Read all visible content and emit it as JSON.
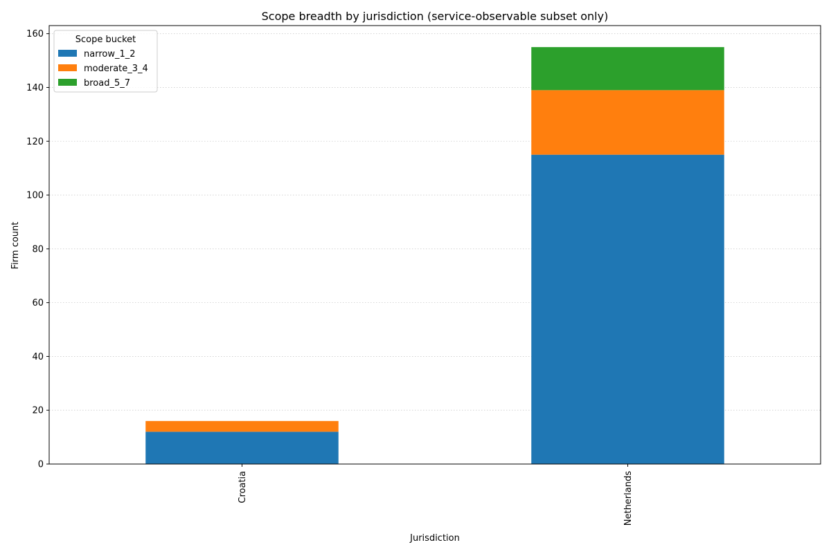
{
  "chart_data": {
    "type": "bar",
    "stacked": true,
    "title": "Scope breadth by jurisdiction (service-observable subset only)",
    "xlabel": "Jurisdiction",
    "ylabel": "Firm count",
    "categories": [
      "Croatia",
      "Netherlands"
    ],
    "series": [
      {
        "name": "narrow_1_2",
        "values": [
          12,
          115
        ],
        "color": "#1f77b4"
      },
      {
        "name": "moderate_3_4",
        "values": [
          4,
          24
        ],
        "color": "#ff7f0e"
      },
      {
        "name": "broad_5_7",
        "values": [
          0,
          16
        ],
        "color": "#2ca02c"
      }
    ],
    "ylim": [
      0,
      163
    ],
    "yticks": [
      0,
      20,
      40,
      60,
      80,
      100,
      120,
      140,
      160
    ],
    "grid": "y-dotted",
    "legend": {
      "title": "Scope bucket",
      "placement": "top-left"
    },
    "colors": {
      "grid": "#cccccc",
      "axis": "#000000"
    }
  }
}
